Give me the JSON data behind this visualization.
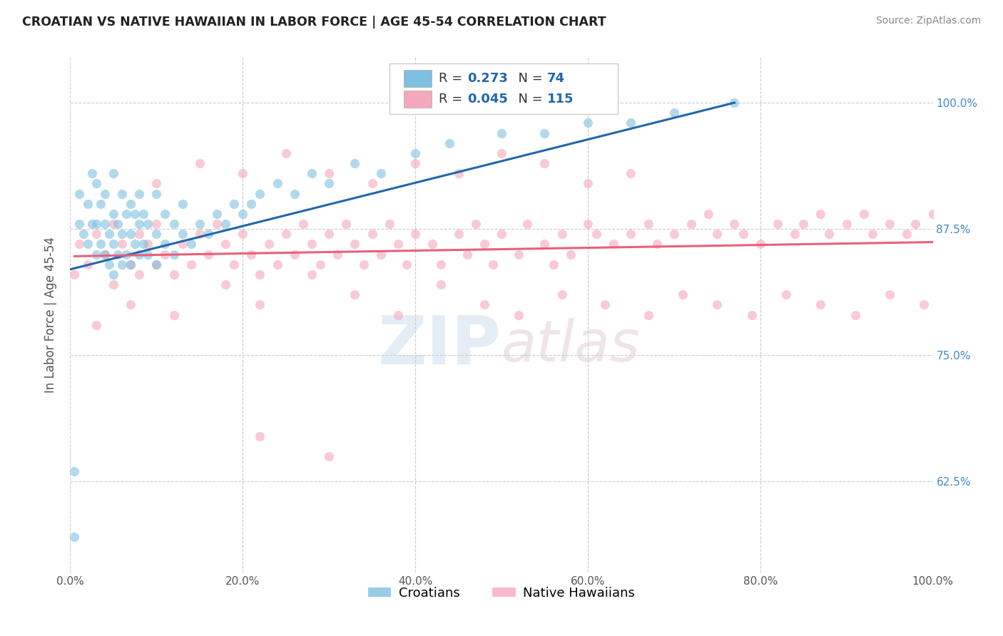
{
  "title": "CROATIAN VS NATIVE HAWAIIAN IN LABOR FORCE | AGE 45-54 CORRELATION CHART",
  "source_text": "Source: ZipAtlas.com",
  "ylabel": "In Labor Force | Age 45-54",
  "xmin": 0.0,
  "xmax": 1.0,
  "ymin": 0.535,
  "ymax": 1.045,
  "right_yticks": [
    0.625,
    0.75,
    0.875,
    1.0
  ],
  "right_yticklabels": [
    "62.5%",
    "75.0%",
    "87.5%",
    "100.0%"
  ],
  "bottom_xticks": [
    0.0,
    0.2,
    0.4,
    0.6,
    0.8,
    1.0
  ],
  "bottom_xticklabels": [
    "0.0%",
    "20.0%",
    "40.0%",
    "60.0%",
    "80.0%",
    "100.0%"
  ],
  "blue_color": "#7fbfdf",
  "pink_color": "#f4a8bc",
  "blue_line_color": "#2166ac",
  "pink_line_color": "#e8607a",
  "dot_alpha": 0.6,
  "dot_size": 90,
  "legend_R_color": "#2166ac",
  "legend_N_color": "#2166ac",
  "croatians_x": [
    0.005,
    0.01,
    0.01,
    0.015,
    0.02,
    0.02,
    0.025,
    0.025,
    0.03,
    0.03,
    0.03,
    0.035,
    0.035,
    0.04,
    0.04,
    0.04,
    0.045,
    0.045,
    0.05,
    0.05,
    0.05,
    0.05,
    0.055,
    0.055,
    0.06,
    0.06,
    0.06,
    0.065,
    0.065,
    0.07,
    0.07,
    0.07,
    0.075,
    0.075,
    0.08,
    0.08,
    0.08,
    0.085,
    0.085,
    0.09,
    0.09,
    0.1,
    0.1,
    0.1,
    0.11,
    0.11,
    0.12,
    0.12,
    0.13,
    0.13,
    0.14,
    0.15,
    0.16,
    0.17,
    0.18,
    0.19,
    0.2,
    0.21,
    0.22,
    0.24,
    0.26,
    0.28,
    0.3,
    0.33,
    0.36,
    0.4,
    0.44,
    0.5,
    0.55,
    0.6,
    0.65,
    0.7,
    0.77,
    0.005
  ],
  "croatians_y": [
    0.57,
    0.88,
    0.91,
    0.87,
    0.86,
    0.9,
    0.88,
    0.93,
    0.85,
    0.88,
    0.92,
    0.86,
    0.9,
    0.85,
    0.88,
    0.91,
    0.84,
    0.87,
    0.83,
    0.86,
    0.89,
    0.93,
    0.85,
    0.88,
    0.84,
    0.87,
    0.91,
    0.85,
    0.89,
    0.84,
    0.87,
    0.9,
    0.86,
    0.89,
    0.85,
    0.88,
    0.91,
    0.86,
    0.89,
    0.85,
    0.88,
    0.84,
    0.87,
    0.91,
    0.86,
    0.89,
    0.85,
    0.88,
    0.87,
    0.9,
    0.86,
    0.88,
    0.87,
    0.89,
    0.88,
    0.9,
    0.89,
    0.9,
    0.91,
    0.92,
    0.91,
    0.93,
    0.92,
    0.94,
    0.93,
    0.95,
    0.96,
    0.97,
    0.97,
    0.98,
    0.98,
    0.99,
    1.0,
    0.635
  ],
  "native_hawaiians_x": [
    0.005,
    0.01,
    0.02,
    0.03,
    0.04,
    0.05,
    0.05,
    0.06,
    0.07,
    0.08,
    0.08,
    0.09,
    0.1,
    0.1,
    0.11,
    0.12,
    0.13,
    0.14,
    0.15,
    0.16,
    0.17,
    0.18,
    0.19,
    0.2,
    0.21,
    0.22,
    0.23,
    0.24,
    0.25,
    0.26,
    0.27,
    0.28,
    0.29,
    0.3,
    0.31,
    0.32,
    0.33,
    0.34,
    0.35,
    0.36,
    0.37,
    0.38,
    0.39,
    0.4,
    0.42,
    0.43,
    0.45,
    0.46,
    0.47,
    0.48,
    0.49,
    0.5,
    0.52,
    0.53,
    0.55,
    0.56,
    0.57,
    0.58,
    0.6,
    0.61,
    0.63,
    0.65,
    0.67,
    0.68,
    0.7,
    0.72,
    0.74,
    0.75,
    0.77,
    0.78,
    0.8,
    0.82,
    0.84,
    0.85,
    0.87,
    0.88,
    0.9,
    0.92,
    0.93,
    0.95,
    0.97,
    0.98,
    1.0,
    0.03,
    0.07,
    0.12,
    0.18,
    0.22,
    0.28,
    0.33,
    0.38,
    0.43,
    0.48,
    0.52,
    0.57,
    0.62,
    0.67,
    0.71,
    0.75,
    0.79,
    0.83,
    0.87,
    0.91,
    0.95,
    0.99,
    0.1,
    0.15,
    0.2,
    0.25,
    0.3,
    0.35,
    0.4,
    0.45,
    0.5,
    0.55,
    0.6,
    0.65,
    0.22,
    0.3
  ],
  "native_hawaiians_y": [
    0.83,
    0.86,
    0.84,
    0.87,
    0.85,
    0.82,
    0.88,
    0.86,
    0.84,
    0.87,
    0.83,
    0.86,
    0.84,
    0.88,
    0.85,
    0.83,
    0.86,
    0.84,
    0.87,
    0.85,
    0.88,
    0.86,
    0.84,
    0.87,
    0.85,
    0.83,
    0.86,
    0.84,
    0.87,
    0.85,
    0.88,
    0.86,
    0.84,
    0.87,
    0.85,
    0.88,
    0.86,
    0.84,
    0.87,
    0.85,
    0.88,
    0.86,
    0.84,
    0.87,
    0.86,
    0.84,
    0.87,
    0.85,
    0.88,
    0.86,
    0.84,
    0.87,
    0.85,
    0.88,
    0.86,
    0.84,
    0.87,
    0.85,
    0.88,
    0.87,
    0.86,
    0.87,
    0.88,
    0.86,
    0.87,
    0.88,
    0.89,
    0.87,
    0.88,
    0.87,
    0.86,
    0.88,
    0.87,
    0.88,
    0.89,
    0.87,
    0.88,
    0.89,
    0.87,
    0.88,
    0.87,
    0.88,
    0.89,
    0.78,
    0.8,
    0.79,
    0.82,
    0.8,
    0.83,
    0.81,
    0.79,
    0.82,
    0.8,
    0.79,
    0.81,
    0.8,
    0.79,
    0.81,
    0.8,
    0.79,
    0.81,
    0.8,
    0.79,
    0.81,
    0.8,
    0.92,
    0.94,
    0.93,
    0.95,
    0.93,
    0.92,
    0.94,
    0.93,
    0.95,
    0.94,
    0.92,
    0.93,
    0.67,
    0.65
  ]
}
